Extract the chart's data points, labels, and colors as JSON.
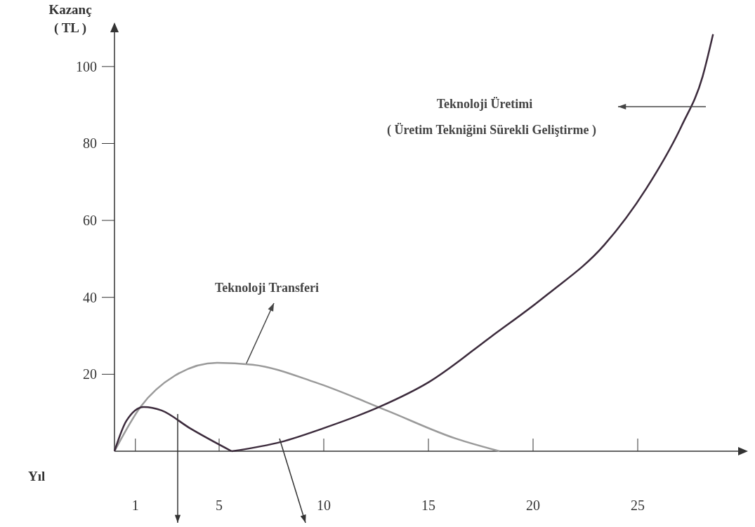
{
  "chart_data": {
    "type": "line",
    "xlabel": "Yıl",
    "ylabel": "Kazanç\n( TL )",
    "xlim": [
      0,
      30
    ],
    "ylim": [
      0,
      110
    ],
    "xticks": [
      1,
      5,
      10,
      15,
      20,
      25
    ],
    "yticks": [
      20,
      40,
      60,
      80,
      100
    ],
    "grid": false,
    "marker": "none",
    "line_style": "solid",
    "series": [
      {
        "color": "#9a9a9a",
        "x": [
          0,
          1.24,
          2.9,
          4.9,
          6.6,
          9.6,
          13,
          16.3,
          18.4
        ],
        "values": [
          0,
          11.5,
          19.7,
          23,
          22.5,
          17.9,
          10.6,
          3.3,
          0
        ]
      },
      {
        "color": "#3c2b3c",
        "x": [
          0,
          0.57,
          1.4,
          2.25,
          3.6,
          5.6
        ],
        "values": [
          0,
          7.9,
          11.5,
          10.6,
          6,
          0
        ]
      },
      {
        "color": "#3c2b3c",
        "x": [
          5.6,
          7.95,
          10,
          12.65,
          15,
          18,
          20.7,
          23.4,
          25.4,
          27.1,
          28.1,
          28.6
        ],
        "values": [
          0,
          2.4,
          6,
          11.5,
          17.9,
          29.8,
          40.8,
          53.6,
          68.2,
          84.6,
          97.4,
          108.4
        ]
      }
    ],
    "annotations": [
      {
        "text": "Teknoloji Transferi",
        "x": 6.3,
        "y": 22.8
      },
      "Teknoloji Üretimi",
      "( Üretim Tekniğini Sürekli Geliştirme )"
    ]
  }
}
